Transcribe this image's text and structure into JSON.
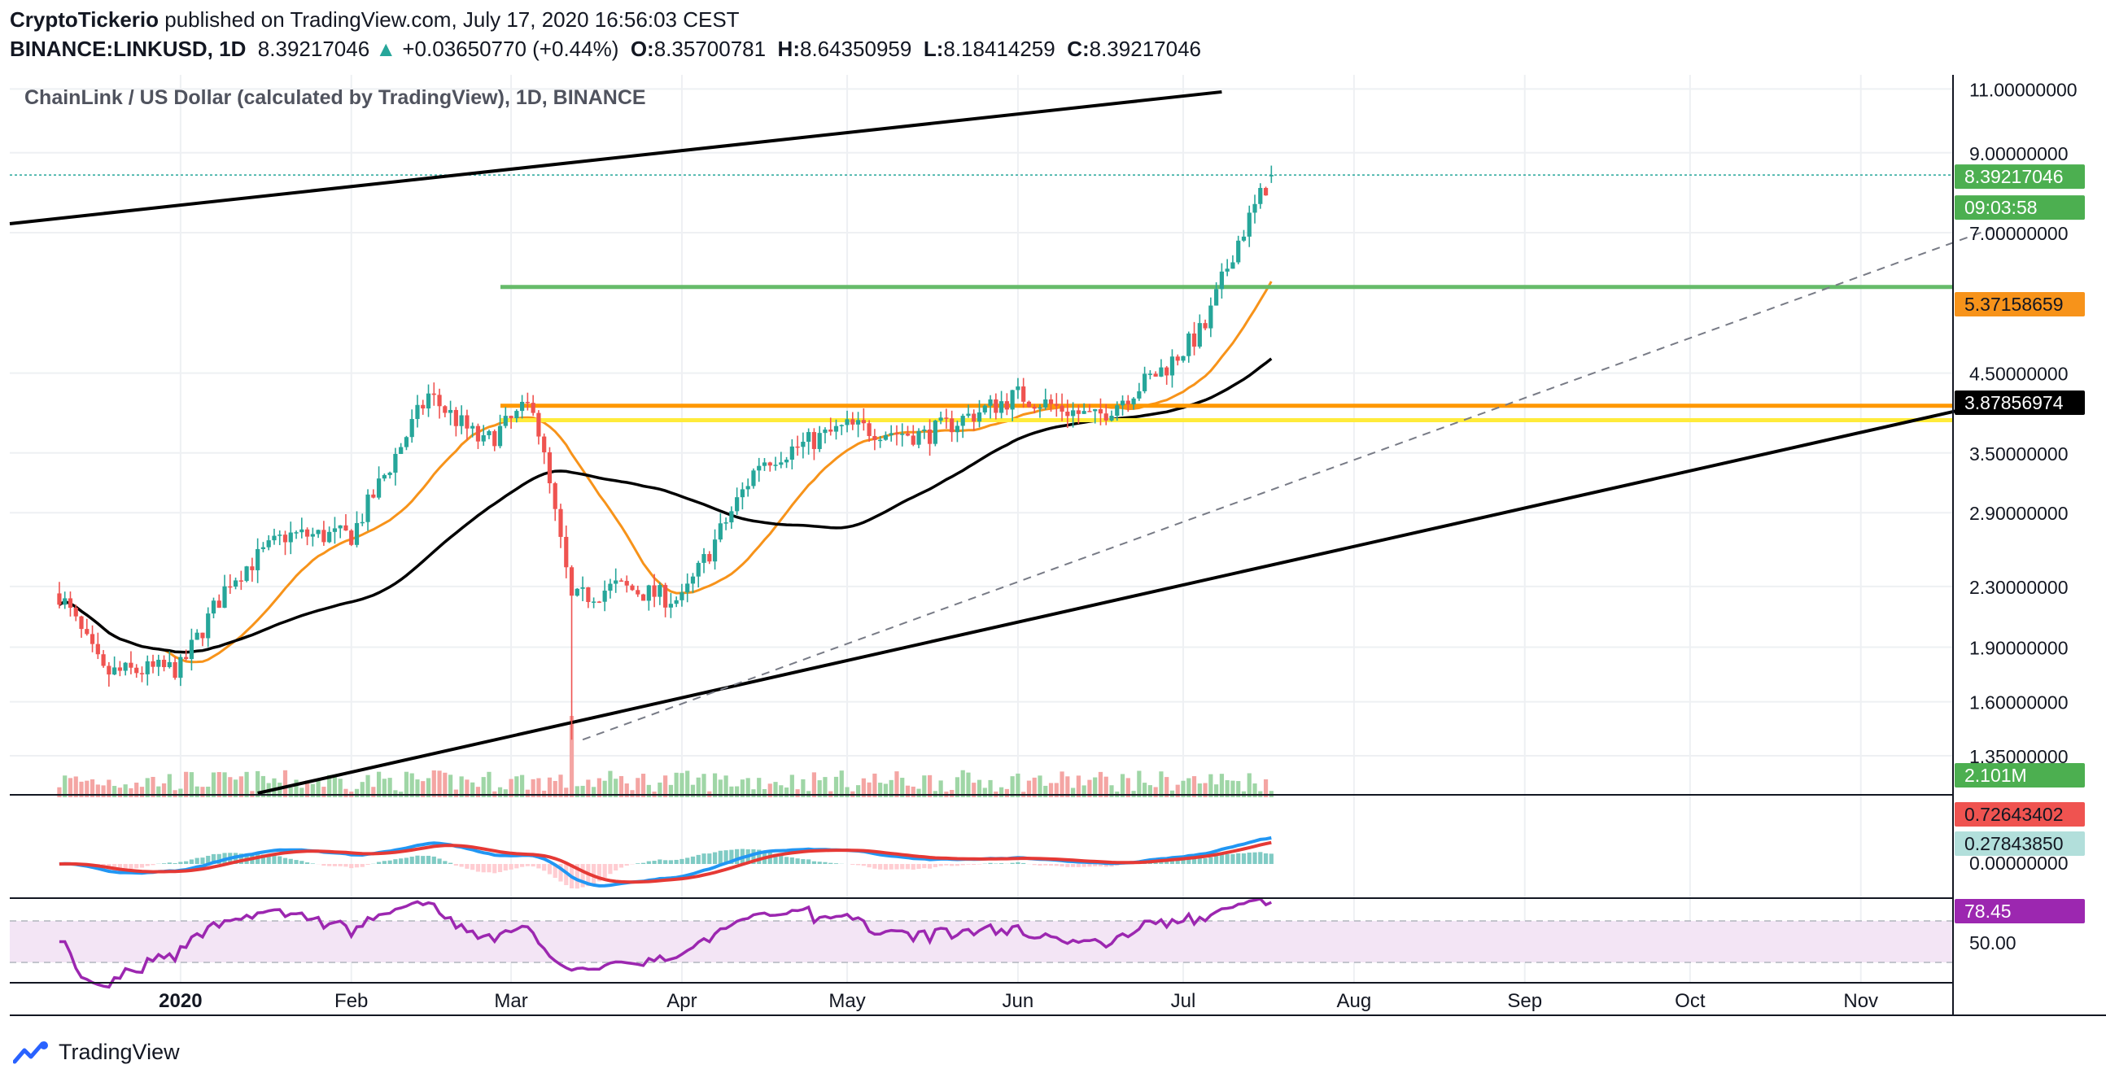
{
  "header": {
    "publisher": "CryptoTickerio",
    "published_text": "published on TradingView.com, July 17, 2020 16:56:03 CEST",
    "symbol": "BINANCE:LINKUSD, 1D",
    "last": "8.39217046",
    "change": "+0.03650770 (+0.44%)",
    "open_label": "O:",
    "open": "8.35700781",
    "high_label": "H:",
    "high": "8.64350959",
    "low_label": "L:",
    "low": "8.18414259",
    "close_label": "C:",
    "close": "8.39217046"
  },
  "chart_title": "ChainLink / US Dollar (calculated by TradingView), 1D, BINANCE",
  "footer": {
    "brand": "TradingView"
  },
  "colors": {
    "up": "#26a69a",
    "down": "#ef5350",
    "up_vol": "#9fd6a6",
    "down_vol": "#f4a5a3",
    "ma50": "#f7931a",
    "ma200": "#000000",
    "support_green": "#66bb6a",
    "resistance_orange": "#ff9800",
    "support_yellow": "#ffeb3b",
    "macd": "#2196f3",
    "signal": "#e53935",
    "rsi": "#9c27b0",
    "rsi_band": "#f3e5f5"
  },
  "chart_data": {
    "type": "candlestick",
    "scale": "log",
    "y_ticks": [
      "11.00000000",
      "9.00000000",
      "7.00000000",
      "4.50000000",
      "3.50000000",
      "2.90000000",
      "2.30000000",
      "1.90000000",
      "1.60000000",
      "1.35000000"
    ],
    "x_ticks": [
      "2020",
      "Feb",
      "Mar",
      "Apr",
      "May",
      "Jun",
      "Jul",
      "Aug",
      "Sep",
      "Oct",
      "Nov"
    ],
    "price_labels": {
      "last_price": "8.39217046",
      "countdown": "09:03:58",
      "ma50": "5.37158659",
      "ma200": "3.87856974",
      "volume": "2.101M",
      "macd": "0.72643402",
      "histogram": "0.27843850",
      "macd_zero": "0.00000000",
      "rsi": "78.45",
      "rsi_tick": "50.00"
    },
    "level_lines": {
      "support_green": 5.9,
      "resistance_orange": 4.06,
      "support_yellow": 3.88
    },
    "key_prices": [
      {
        "date": "2019-12-10",
        "close": 2.25
      },
      {
        "date": "2019-12-18",
        "close": 1.75
      },
      {
        "date": "2020-01-01",
        "close": 1.78
      },
      {
        "date": "2020-01-10",
        "close": 2.35
      },
      {
        "date": "2020-01-20",
        "close": 2.7
      },
      {
        "date": "2020-02-01",
        "close": 2.7
      },
      {
        "date": "2020-02-15",
        "close": 4.2
      },
      {
        "date": "2020-02-25",
        "close": 3.6
      },
      {
        "date": "2020-03-05",
        "close": 4.1
      },
      {
        "date": "2020-03-12",
        "close": 2.2
      },
      {
        "date": "2020-03-20",
        "close": 2.3
      },
      {
        "date": "2020-04-01",
        "close": 2.2
      },
      {
        "date": "2020-04-15",
        "close": 3.4
      },
      {
        "date": "2020-05-01",
        "close": 3.8
      },
      {
        "date": "2020-05-15",
        "close": 3.7
      },
      {
        "date": "2020-06-01",
        "close": 4.2
      },
      {
        "date": "2020-06-15",
        "close": 3.9
      },
      {
        "date": "2020-06-28",
        "close": 4.6
      },
      {
        "date": "2020-07-05",
        "close": 5.2
      },
      {
        "date": "2020-07-10",
        "close": 6.6
      },
      {
        "date": "2020-07-17",
        "close": 8.39
      }
    ]
  }
}
